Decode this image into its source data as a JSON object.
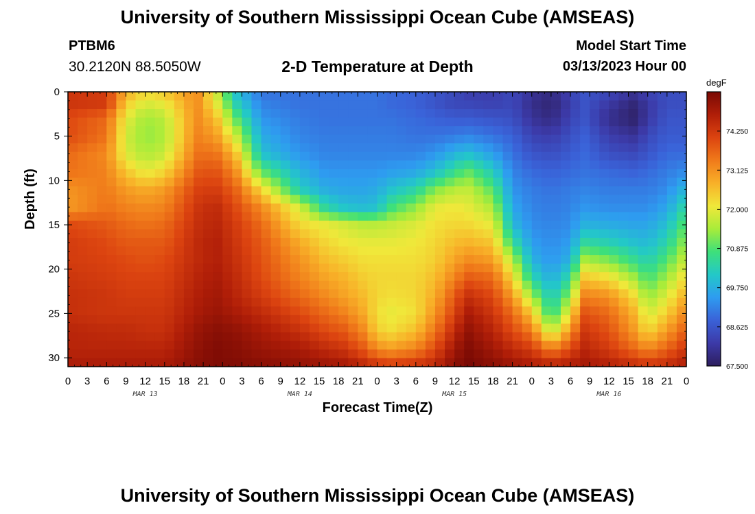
{
  "header": {
    "title": "University of Southern Mississippi Ocean Cube (AMSEAS)",
    "station": "PTBM6",
    "coords": "30.2120N  88.5050W",
    "subtitle": "2-D Temperature at Depth",
    "model_start_label": "Model Start Time",
    "model_start_value": "03/13/2023 Hour 00"
  },
  "footer": {
    "title": "University of Southern Mississippi Ocean Cube (AMSEAS)"
  },
  "chart_data": {
    "type": "heatmap",
    "title": "2-D Temperature at Depth",
    "xlabel": "Forecast Time(Z)",
    "ylabel": "Depth (ft)",
    "x_unit": "hours since 03/13/2023 00Z",
    "xlim": [
      0,
      96
    ],
    "ylim": [
      0,
      31
    ],
    "x_tick_labels": [
      "0",
      "3",
      "6",
      "9",
      "12",
      "15",
      "18",
      "21",
      "0",
      "3",
      "6",
      "9",
      "12",
      "15",
      "18",
      "21",
      "0",
      "3",
      "6",
      "9",
      "12",
      "15",
      "18",
      "21",
      "0",
      "3",
      "6",
      "9",
      "12",
      "15",
      "18",
      "21",
      "0"
    ],
    "y_ticks": [
      0,
      5,
      10,
      15,
      20,
      25,
      30
    ],
    "day_labels": [
      {
        "hour": 12,
        "label": "MAR 13"
      },
      {
        "hour": 36,
        "label": "MAR 14"
      },
      {
        "hour": 60,
        "label": "MAR 15"
      },
      {
        "hour": 84,
        "label": "MAR 16"
      }
    ],
    "colorbar": {
      "unit": "degF",
      "min": 67.5,
      "max": 75.375,
      "ticks": [
        74.25,
        73.125,
        72.0,
        70.875,
        69.75,
        68.625,
        67.5
      ],
      "tick_labels": [
        "74.250",
        "73.125",
        "72.000",
        "70.875",
        "69.750",
        "68.625",
        "67.500"
      ],
      "colors": [
        "#2d1e5e",
        "#3c3aa8",
        "#3a62d8",
        "#2e9cf0",
        "#23c8c8",
        "#3ee07a",
        "#a8ec3a",
        "#f0e83a",
        "#f8b028",
        "#f07a1a",
        "#dc4410",
        "#b01e08",
        "#7a0a04"
      ]
    },
    "depth_levels": [
      0,
      1.5,
      3,
      5,
      7,
      9,
      11,
      13,
      15,
      17,
      19,
      21,
      23,
      25,
      27,
      29,
      31
    ],
    "time_hours": [
      0,
      6,
      9,
      12,
      15,
      20,
      23,
      26,
      30,
      36,
      40,
      43,
      46,
      48,
      50,
      54,
      57,
      60,
      62,
      66,
      69,
      72,
      75,
      78,
      80,
      84,
      88,
      90,
      93,
      96
    ],
    "temperature_degF": [
      [
        74.3,
        74.3,
        74.0,
        74.0,
        73.6,
        73.5,
        73.1,
        73.0,
        74.0,
        74.2,
        74.2,
        74.3,
        74.4,
        74.4,
        74.6,
        74.6,
        74.8
      ],
      [
        74.2,
        74.2,
        73.6,
        73.5,
        73.2,
        73.3,
        73.4,
        73.5,
        73.8,
        74.0,
        74.1,
        74.2,
        74.3,
        74.3,
        74.5,
        74.6,
        74.8
      ],
      [
        72.8,
        72.4,
        72.0,
        71.8,
        71.9,
        72.5,
        73.0,
        73.3,
        73.6,
        73.8,
        74.0,
        74.1,
        74.2,
        74.3,
        74.5,
        74.6,
        74.8
      ],
      [
        72.3,
        71.8,
        71.4,
        71.3,
        71.5,
        72.0,
        72.8,
        73.2,
        73.5,
        73.8,
        73.9,
        74.1,
        74.2,
        74.3,
        74.4,
        74.6,
        74.8
      ],
      [
        72.5,
        72.0,
        71.6,
        71.5,
        71.7,
        72.3,
        73.0,
        73.3,
        73.6,
        73.8,
        74.0,
        74.1,
        74.2,
        74.3,
        74.4,
        74.6,
        74.8
      ],
      [
        73.2,
        73.2,
        73.2,
        73.3,
        73.5,
        73.8,
        74.1,
        74.3,
        74.4,
        74.5,
        74.5,
        74.6,
        74.7,
        74.8,
        75.0,
        75.1,
        75.2
      ],
      [
        71.8,
        72.1,
        72.6,
        73.0,
        73.5,
        73.9,
        74.2,
        74.5,
        74.6,
        74.7,
        74.7,
        74.8,
        74.9,
        75.0,
        75.2,
        75.3,
        75.3
      ],
      [
        70.0,
        70.4,
        71.0,
        71.8,
        72.6,
        73.2,
        73.7,
        74.0,
        74.2,
        74.3,
        74.4,
        74.5,
        74.6,
        74.8,
        75.1,
        75.2,
        75.3
      ],
      [
        69.0,
        69.2,
        69.4,
        69.7,
        70.0,
        71.0,
        72.3,
        73.2,
        73.6,
        73.8,
        73.9,
        74.0,
        74.2,
        74.5,
        74.8,
        75.0,
        75.2
      ],
      [
        69.0,
        69.0,
        69.1,
        69.2,
        69.4,
        69.8,
        70.2,
        71.8,
        72.3,
        72.8,
        73.1,
        73.3,
        73.6,
        74.0,
        74.4,
        74.8,
        75.1
      ],
      [
        69.0,
        69.0,
        69.0,
        69.1,
        69.2,
        69.4,
        69.7,
        70.4,
        72.0,
        72.3,
        72.6,
        72.9,
        73.2,
        73.6,
        74.0,
        74.5,
        75.0
      ],
      [
        69.0,
        69.0,
        69.0,
        69.1,
        69.2,
        69.4,
        69.6,
        70.0,
        71.8,
        72.1,
        72.4,
        72.7,
        72.9,
        73.3,
        73.8,
        74.3,
        74.9
      ],
      [
        69.0,
        69.0,
        69.0,
        69.1,
        69.2,
        69.4,
        69.6,
        69.9,
        71.6,
        72.0,
        72.2,
        72.4,
        72.6,
        72.8,
        73.2,
        73.8,
        74.6
      ],
      [
        69.0,
        69.0,
        69.0,
        69.1,
        69.2,
        69.4,
        69.7,
        70.0,
        71.6,
        72.0,
        72.2,
        72.3,
        72.3,
        72.2,
        72.4,
        73.2,
        74.4
      ],
      [
        68.9,
        68.9,
        69.0,
        69.1,
        69.2,
        69.5,
        70.0,
        70.7,
        71.7,
        72.0,
        72.2,
        72.3,
        72.2,
        72.0,
        72.2,
        73.0,
        74.3
      ],
      [
        68.8,
        68.8,
        68.9,
        69.0,
        69.2,
        69.6,
        70.4,
        71.3,
        71.9,
        72.1,
        72.2,
        72.3,
        72.3,
        72.2,
        72.6,
        73.3,
        74.4
      ],
      [
        68.6,
        68.6,
        68.8,
        69.0,
        69.4,
        70.0,
        71.2,
        72.0,
        72.2,
        72.3,
        72.4,
        72.6,
        72.8,
        73.1,
        73.5,
        74.0,
        74.6
      ],
      [
        68.4,
        68.4,
        68.7,
        69.1,
        69.8,
        70.6,
        71.6,
        72.1,
        72.3,
        72.6,
        72.9,
        73.3,
        73.8,
        74.1,
        74.5,
        74.9,
        75.2
      ],
      [
        68.2,
        68.4,
        68.7,
        69.2,
        70.0,
        71.0,
        71.7,
        72.0,
        72.3,
        72.7,
        73.2,
        73.8,
        74.4,
        74.8,
        75.1,
        75.3,
        75.4
      ],
      [
        68.2,
        68.3,
        68.6,
        69.0,
        69.5,
        70.2,
        70.9,
        71.5,
        72.0,
        72.5,
        73.0,
        73.6,
        74.0,
        74.3,
        74.6,
        74.9,
        75.2
      ],
      [
        68.4,
        68.4,
        68.5,
        68.8,
        69.0,
        69.2,
        69.4,
        69.6,
        69.9,
        70.6,
        71.6,
        72.3,
        73.0,
        73.6,
        74.0,
        74.5,
        75.0
      ],
      [
        68.0,
        67.9,
        68.0,
        68.3,
        68.6,
        68.9,
        69.1,
        69.2,
        69.3,
        69.5,
        69.8,
        70.4,
        71.4,
        72.5,
        73.4,
        74.2,
        74.8
      ],
      [
        67.8,
        67.7,
        67.8,
        68.2,
        68.5,
        68.8,
        69.0,
        69.1,
        69.2,
        69.3,
        69.4,
        69.7,
        70.1,
        70.5,
        71.6,
        73.3,
        74.7
      ],
      [
        68.3,
        68.2,
        68.3,
        68.5,
        68.7,
        68.9,
        69.1,
        69.2,
        69.3,
        69.5,
        69.8,
        70.5,
        71.3,
        72.2,
        73.1,
        74.0,
        74.8
      ],
      [
        68.6,
        68.6,
        68.6,
        68.8,
        68.9,
        69.0,
        69.2,
        69.4,
        69.8,
        70.5,
        71.5,
        72.5,
        73.3,
        73.9,
        74.3,
        74.6,
        74.9
      ],
      [
        68.4,
        68.1,
        67.9,
        68.2,
        68.5,
        68.9,
        69.1,
        69.3,
        69.7,
        70.3,
        71.2,
        72.2,
        73.1,
        73.6,
        73.9,
        74.2,
        74.7
      ],
      [
        68.0,
        67.7,
        67.6,
        68.0,
        68.4,
        68.8,
        69.1,
        69.3,
        69.6,
        70.0,
        70.6,
        71.4,
        72.2,
        72.7,
        73.0,
        73.6,
        74.5
      ],
      [
        68.3,
        68.1,
        68.1,
        68.4,
        68.6,
        68.9,
        69.1,
        69.3,
        69.6,
        69.9,
        70.3,
        70.8,
        71.3,
        71.8,
        72.3,
        73.2,
        74.4
      ],
      [
        68.5,
        68.5,
        68.6,
        68.7,
        68.9,
        69.1,
        69.3,
        69.6,
        70.0,
        70.4,
        70.9,
        71.4,
        71.9,
        72.4,
        73.0,
        73.7,
        74.5
      ],
      [
        68.5,
        68.5,
        68.6,
        68.7,
        68.9,
        69.3,
        69.9,
        70.5,
        71.0,
        71.4,
        71.8,
        72.3,
        72.8,
        73.3,
        73.8,
        74.3,
        74.8
      ]
    ]
  }
}
